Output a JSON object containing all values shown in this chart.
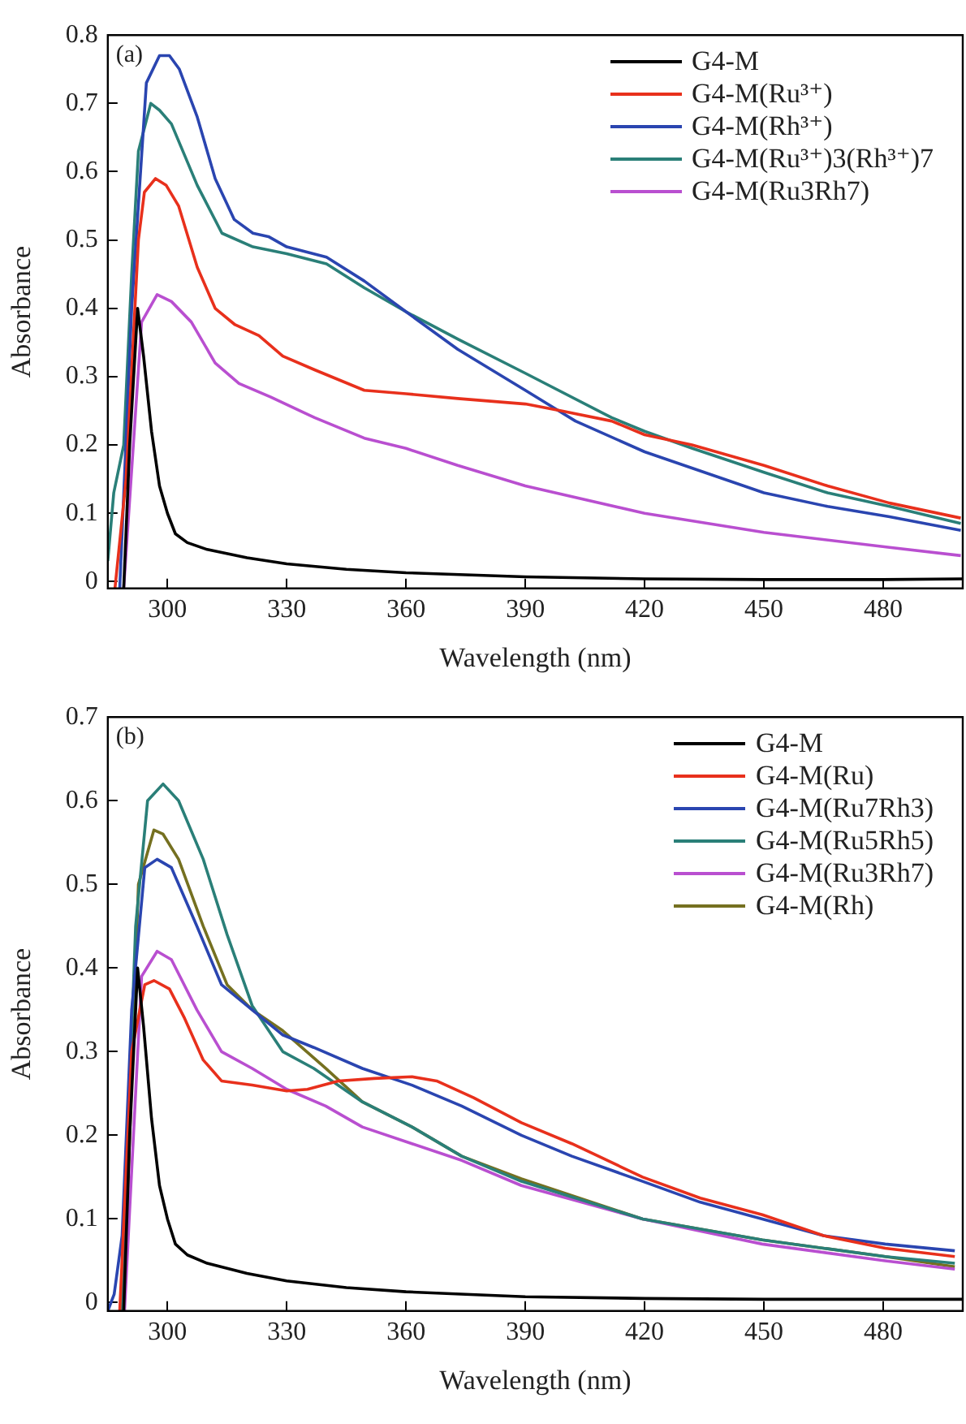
{
  "chart_data": [
    {
      "type": "line",
      "xlabel": "Wavelength (nm)",
      "ylabel": "Absorbance",
      "annotations": [
        "(a)"
      ],
      "legend": "top right",
      "marker": "none",
      "line_style": "solid",
      "xlim": [
        285,
        500
      ],
      "xticks": [
        300,
        330,
        360,
        390,
        420,
        450,
        480
      ],
      "ylim": [
        -0.01,
        0.8
      ],
      "yticks": [
        0,
        0.1,
        0.2,
        0.3,
        0.4,
        0.5,
        0.6,
        0.7,
        0.8
      ],
      "series": [
        {
          "name": "G4-M",
          "color": "#000000",
          "x": [
            289,
            290.5,
            292.5,
            294,
            296,
            298,
            300,
            302,
            305,
            310,
            320,
            330,
            345,
            360,
            375,
            390,
            420,
            450,
            480,
            500
          ],
          "values": [
            -0.01,
            0.2,
            0.4,
            0.33,
            0.22,
            0.14,
            0.1,
            0.07,
            0.057,
            0.047,
            0.035,
            0.026,
            0.018,
            0.013,
            0.01,
            0.007,
            0.004,
            0.003,
            0.003,
            0.004
          ]
        },
        {
          "name": "G4-M(Ru³⁺)",
          "color": "#e8301c",
          "x": [
            286.8,
            289.6,
            292.7,
            294.2,
            297,
            299.7,
            302.8,
            307.5,
            312,
            317,
            323,
            329,
            337,
            349.5,
            360,
            373,
            390,
            399,
            411.7,
            420,
            431.9,
            450,
            466,
            481.6,
            499.5
          ],
          "values": [
            -0.01,
            0.15,
            0.5,
            0.57,
            0.59,
            0.58,
            0.55,
            0.46,
            0.4,
            0.376,
            0.36,
            0.33,
            0.31,
            0.28,
            0.275,
            0.268,
            0.26,
            0.25,
            0.235,
            0.215,
            0.2,
            0.17,
            0.14,
            0.115,
            0.093
          ]
        },
        {
          "name": "G4-M(Rh³⁺)",
          "color": "#2a45b0",
          "x": [
            288,
            291,
            294.7,
            298,
            300.5,
            303,
            307.5,
            312,
            316.8,
            321.5,
            325.4,
            330,
            340,
            349.5,
            360,
            373,
            390,
            402.6,
            420,
            435,
            450,
            466,
            481.6,
            499.5
          ],
          "values": [
            -0.01,
            0.4,
            0.73,
            0.77,
            0.77,
            0.75,
            0.68,
            0.59,
            0.53,
            0.51,
            0.505,
            0.49,
            0.475,
            0.44,
            0.395,
            0.34,
            0.28,
            0.235,
            0.19,
            0.16,
            0.13,
            0.11,
            0.095,
            0.075
          ]
        },
        {
          "name": "G4-M(Ru³⁺)3(Rh³⁺)7",
          "color": "#2a7f78",
          "x": [
            285,
            286.5,
            289,
            291,
            292.7,
            295.8,
            298,
            301,
            307.5,
            313.7,
            321.5,
            330,
            340,
            349.5,
            360,
            373,
            390,
            411.7,
            420,
            432,
            450,
            466,
            481.6,
            499.5
          ],
          "values": [
            0.03,
            0.13,
            0.2,
            0.45,
            0.63,
            0.7,
            0.69,
            0.67,
            0.58,
            0.51,
            0.49,
            0.48,
            0.465,
            0.43,
            0.395,
            0.355,
            0.305,
            0.24,
            0.22,
            0.195,
            0.16,
            0.13,
            0.11,
            0.085
          ]
        },
        {
          "name": "G4-M(Ru3Rh7)",
          "color": "#b94fd0",
          "x": [
            289,
            293.5,
            297.4,
            301,
            306,
            312,
            318,
            326,
            337,
            349.5,
            360,
            373,
            390,
            420,
            450,
            481.6,
            499.5
          ],
          "values": [
            -0.01,
            0.38,
            0.42,
            0.41,
            0.38,
            0.32,
            0.29,
            0.27,
            0.24,
            0.21,
            0.195,
            0.17,
            0.14,
            0.1,
            0.072,
            0.05,
            0.038
          ]
        }
      ]
    },
    {
      "type": "line",
      "xlabel": "Wavelength (nm)",
      "ylabel": "Absorbance",
      "annotations": [
        "(b)"
      ],
      "legend": "top right",
      "marker": "none",
      "line_style": "solid",
      "xlim": [
        285,
        500
      ],
      "xticks": [
        300,
        330,
        360,
        390,
        420,
        450,
        480
      ],
      "ylim": [
        -0.01,
        0.7
      ],
      "yticks": [
        0,
        0.1,
        0.2,
        0.3,
        0.4,
        0.5,
        0.6,
        0.7
      ],
      "series": [
        {
          "name": "G4-M",
          "color": "#000000",
          "x": [
            289,
            290.5,
            292.5,
            294,
            296,
            298,
            300,
            302,
            305,
            310,
            320,
            330,
            345,
            360,
            375,
            390,
            420,
            450,
            480,
            500
          ],
          "values": [
            -0.01,
            0.2,
            0.4,
            0.33,
            0.22,
            0.14,
            0.1,
            0.07,
            0.057,
            0.047,
            0.035,
            0.026,
            0.018,
            0.013,
            0.01,
            0.007,
            0.005,
            0.004,
            0.004,
            0.004
          ]
        },
        {
          "name": "G4-M(Ru)",
          "color": "#e8301c",
          "x": [
            288,
            291,
            294.3,
            296.6,
            300.5,
            304.3,
            309,
            313.6,
            321.3,
            330,
            335.2,
            343,
            352,
            361.5,
            367.7,
            377,
            389,
            401.7,
            419.5,
            434,
            449.6,
            465,
            480.5,
            498
          ],
          "values": [
            -0.01,
            0.3,
            0.38,
            0.385,
            0.375,
            0.34,
            0.29,
            0.265,
            0.26,
            0.253,
            0.255,
            0.265,
            0.268,
            0.27,
            0.265,
            0.245,
            0.215,
            0.19,
            0.15,
            0.125,
            0.105,
            0.08,
            0.065,
            0.055
          ]
        },
        {
          "name": "G4-M(Ru7Rh3)",
          "color": "#2a45b0",
          "x": [
            285,
            286.6,
            288.6,
            291,
            294.3,
            297.4,
            301,
            307.4,
            313.6,
            321.3,
            329,
            336.8,
            349,
            361.5,
            374,
            389,
            401.7,
            419.5,
            434,
            449.6,
            465,
            480.5,
            498
          ],
          "values": [
            -0.01,
            0.01,
            0.08,
            0.35,
            0.52,
            0.53,
            0.52,
            0.45,
            0.38,
            0.35,
            0.32,
            0.305,
            0.28,
            0.26,
            0.235,
            0.2,
            0.175,
            0.145,
            0.12,
            0.1,
            0.08,
            0.07,
            0.062
          ]
        },
        {
          "name": "G4-M(Ru5Rh5)",
          "color": "#2a7f78",
          "x": [
            288.4,
            292,
            295,
            298.9,
            302.8,
            309,
            315,
            321.3,
            329,
            336.8,
            349,
            361.5,
            374,
            389,
            419.5,
            449.6,
            480.5,
            498
          ],
          "values": [
            -0.01,
            0.45,
            0.6,
            0.62,
            0.6,
            0.53,
            0.44,
            0.355,
            0.3,
            0.28,
            0.24,
            0.21,
            0.175,
            0.145,
            0.1,
            0.075,
            0.055,
            0.047
          ]
        },
        {
          "name": "G4-M(Ru3Rh7)",
          "color": "#b94fd0",
          "x": [
            289.2,
            293.5,
            297.4,
            301,
            307.4,
            313.6,
            321.3,
            330,
            339.8,
            349,
            361.5,
            374,
            389,
            419.5,
            449.6,
            480.5,
            498
          ],
          "values": [
            -0.01,
            0.39,
            0.42,
            0.41,
            0.35,
            0.3,
            0.28,
            0.255,
            0.235,
            0.21,
            0.19,
            0.17,
            0.14,
            0.1,
            0.07,
            0.05,
            0.04
          ]
        },
        {
          "name": "G4-M(Rh)",
          "color": "#757020",
          "x": [
            289,
            292.7,
            296.6,
            298.9,
            302.8,
            309,
            315,
            321.3,
            329,
            339.8,
            349,
            361.5,
            374,
            389,
            419.5,
            449.6,
            480.5,
            498
          ],
          "values": [
            -0.01,
            0.5,
            0.565,
            0.56,
            0.53,
            0.45,
            0.38,
            0.35,
            0.325,
            0.28,
            0.24,
            0.21,
            0.175,
            0.148,
            0.1,
            0.075,
            0.055,
            0.043
          ]
        }
      ]
    }
  ]
}
